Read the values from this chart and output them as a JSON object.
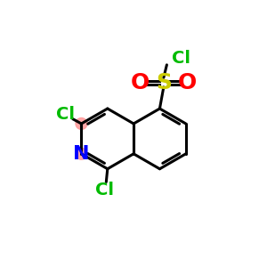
{
  "background_color": "#ffffff",
  "bond_color": "#000000",
  "bond_width": 2.2,
  "N_color": "#0000FF",
  "N_fontsize": 16,
  "Cl_color": "#00BB00",
  "Cl_fontsize": 14,
  "S_color": "#CCCC00",
  "S_fontsize": 18,
  "O_color": "#FF0000",
  "O_fontsize": 18,
  "highlight_color": "#FF9999",
  "highlight_alpha": 0.85,
  "figsize": [
    3.0,
    3.0
  ],
  "dpi": 100,
  "xlim": [
    0,
    10
  ],
  "ylim": [
    0,
    10
  ]
}
